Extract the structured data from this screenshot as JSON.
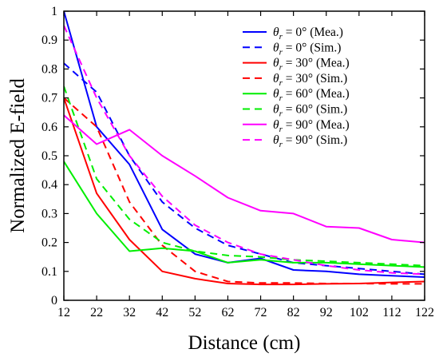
{
  "chart_data": {
    "type": "line",
    "xlabel": "Distance (cm)",
    "ylabel": "Normalized E-field",
    "xlim": [
      12,
      122
    ],
    "ylim": [
      0,
      1
    ],
    "xticks": [
      12,
      22,
      32,
      42,
      52,
      62,
      72,
      82,
      92,
      102,
      112,
      122
    ],
    "yticks": [
      0,
      0.1,
      0.2,
      0.3,
      0.4,
      0.5,
      0.6,
      0.7,
      0.8,
      0.9,
      1
    ],
    "ytick_labels": [
      "0",
      "0.1",
      "0.2",
      "0.3",
      "0.4",
      "0.5",
      "0.6",
      "0.7",
      "0.8",
      "0.9",
      "1"
    ],
    "grid": false,
    "legend_position": "top-right",
    "series": [
      {
        "name": "θr = 0° (Mea.)",
        "label_prefix": "θ",
        "label_sub": "r",
        "label_rest": " = 0° (Mea.)",
        "color": "#0000ff",
        "dash": "solid",
        "x": [
          12,
          22,
          32,
          42,
          52,
          62,
          72,
          82,
          92,
          102,
          112,
          122
        ],
        "y": [
          1.0,
          0.6,
          0.47,
          0.245,
          0.16,
          0.13,
          0.145,
          0.105,
          0.1,
          0.09,
          0.085,
          0.08
        ]
      },
      {
        "name": "θr = 0° (Sim.)",
        "label_prefix": "θ",
        "label_sub": "r",
        "label_rest": " = 0° (Sim.)",
        "color": "#0000ff",
        "dash": "dashed",
        "x": [
          12,
          22,
          32,
          42,
          52,
          62,
          72,
          82,
          92,
          102,
          112,
          122
        ],
        "y": [
          0.82,
          0.72,
          0.5,
          0.34,
          0.25,
          0.19,
          0.16,
          0.13,
          0.12,
          0.11,
          0.1,
          0.09
        ]
      },
      {
        "name": "θr = 30° (Mea.)",
        "label_prefix": "θ",
        "label_sub": "r",
        "label_rest": " = 30° (Mea.)",
        "color": "#ff0000",
        "dash": "solid",
        "x": [
          12,
          22,
          32,
          42,
          52,
          62,
          72,
          82,
          92,
          102,
          112,
          122
        ],
        "y": [
          0.7,
          0.37,
          0.21,
          0.1,
          0.075,
          0.058,
          0.055,
          0.055,
          0.057,
          0.058,
          0.062,
          0.065
        ]
      },
      {
        "name": "θr = 30° (Sim.)",
        "label_prefix": "θ",
        "label_sub": "r",
        "label_rest": " = 30° (Sim.)",
        "color": "#ff0000",
        "dash": "dashed",
        "x": [
          12,
          22,
          32,
          42,
          52,
          62,
          72,
          82,
          92,
          102,
          112,
          122
        ],
        "y": [
          0.7,
          0.6,
          0.34,
          0.19,
          0.1,
          0.065,
          0.06,
          0.06,
          0.058,
          0.058,
          0.057,
          0.057
        ]
      },
      {
        "name": "θr = 60° (Mea.)",
        "label_prefix": "θ",
        "label_sub": "r",
        "label_rest": " = 60° (Mea.)",
        "color": "#00ee00",
        "dash": "solid",
        "x": [
          12,
          22,
          32,
          42,
          52,
          62,
          72,
          82,
          92,
          102,
          112,
          122
        ],
        "y": [
          0.48,
          0.3,
          0.17,
          0.18,
          0.17,
          0.13,
          0.14,
          0.13,
          0.13,
          0.125,
          0.12,
          0.115
        ]
      },
      {
        "name": "θr = 60° (Sim.)",
        "label_prefix": "θ",
        "label_sub": "r",
        "label_rest": " = 60° (Sim.)",
        "color": "#00ee00",
        "dash": "dashed",
        "x": [
          12,
          22,
          32,
          42,
          52,
          62,
          72,
          82,
          92,
          102,
          112,
          122
        ],
        "y": [
          0.74,
          0.42,
          0.28,
          0.2,
          0.17,
          0.155,
          0.15,
          0.14,
          0.135,
          0.13,
          0.125,
          0.12
        ]
      },
      {
        "name": "θr = 90° (Mea.)",
        "label_prefix": "θ",
        "label_sub": "r",
        "label_rest": " = 90° (Mea.)",
        "color": "#ff00ff",
        "dash": "solid",
        "x": [
          12,
          22,
          32,
          42,
          52,
          62,
          72,
          82,
          92,
          102,
          112,
          122
        ],
        "y": [
          0.64,
          0.54,
          0.59,
          0.5,
          0.43,
          0.355,
          0.31,
          0.3,
          0.255,
          0.25,
          0.21,
          0.2
        ]
      },
      {
        "name": "θr = 90° (Sim.)",
        "label_prefix": "θ",
        "label_sub": "r",
        "label_rest": " = 90° (Sim.)",
        "color": "#ff00ff",
        "dash": "dashed",
        "x": [
          12,
          22,
          32,
          42,
          52,
          62,
          72,
          82,
          92,
          102,
          112,
          122
        ],
        "y": [
          0.95,
          0.7,
          0.5,
          0.36,
          0.26,
          0.2,
          0.16,
          0.14,
          0.12,
          0.105,
          0.095,
          0.09
        ]
      }
    ]
  }
}
